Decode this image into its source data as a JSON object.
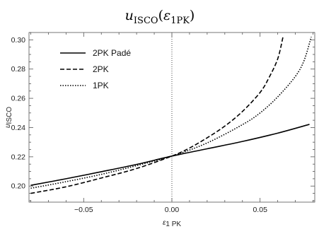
{
  "chart_data": {
    "type": "line",
    "title": {
      "symbol": "u",
      "symbol_sub": "ISCO",
      "open_paren": "(",
      "argument": "ε",
      "argument_sub": "1PK",
      "close_paren": ")"
    },
    "xlabel": {
      "symbol": "ε",
      "sub": "1 PK"
    },
    "ylabel": {
      "symbol": "u",
      "sub": "ISCO"
    },
    "xlim": [
      -0.081,
      0.081
    ],
    "ylim": [
      0.189,
      0.305
    ],
    "xticks": [
      {
        "value": -0.05,
        "label": "−0.05"
      },
      {
        "value": 0.0,
        "label": "0.00"
      },
      {
        "value": 0.05,
        "label": "0.05"
      }
    ],
    "yticks": [
      {
        "value": 0.2,
        "label": "0.20"
      },
      {
        "value": 0.22,
        "label": "0.22"
      },
      {
        "value": 0.24,
        "label": "0.24"
      },
      {
        "value": 0.26,
        "label": "0.26"
      },
      {
        "value": 0.28,
        "label": "0.28"
      },
      {
        "value": 0.3,
        "label": "0.30"
      }
    ],
    "vertical_reference_line": {
      "x": 0.0,
      "style": "dotted"
    },
    "grid": false,
    "legend_position": "top-left",
    "series": [
      {
        "name": "2PK Padé",
        "style": "solid",
        "x": [
          -0.08,
          -0.06,
          -0.04,
          -0.02,
          0.0,
          0.02,
          0.04,
          0.06,
          0.078
        ],
        "y": [
          0.2005,
          0.205,
          0.2098,
          0.2148,
          0.2205,
          0.2255,
          0.2305,
          0.2362,
          0.2422
        ]
      },
      {
        "name": "2PK",
        "style": "dashed",
        "x": [
          -0.08,
          -0.06,
          -0.04,
          -0.02,
          0.0,
          0.01,
          0.02,
          0.03,
          0.04,
          0.05,
          0.055,
          0.06,
          0.063
        ],
        "y": [
          0.195,
          0.1995,
          0.2055,
          0.212,
          0.2205,
          0.226,
          0.233,
          0.241,
          0.251,
          0.264,
          0.274,
          0.287,
          0.302
        ]
      },
      {
        "name": "1PK",
        "style": "dotted",
        "x": [
          -0.08,
          -0.06,
          -0.04,
          -0.02,
          0.0,
          0.02,
          0.04,
          0.05,
          0.06,
          0.07,
          0.075,
          0.079
        ],
        "y": [
          0.1985,
          0.203,
          0.208,
          0.214,
          0.2205,
          0.2295,
          0.242,
          0.25,
          0.261,
          0.275,
          0.286,
          0.302
        ]
      }
    ]
  }
}
